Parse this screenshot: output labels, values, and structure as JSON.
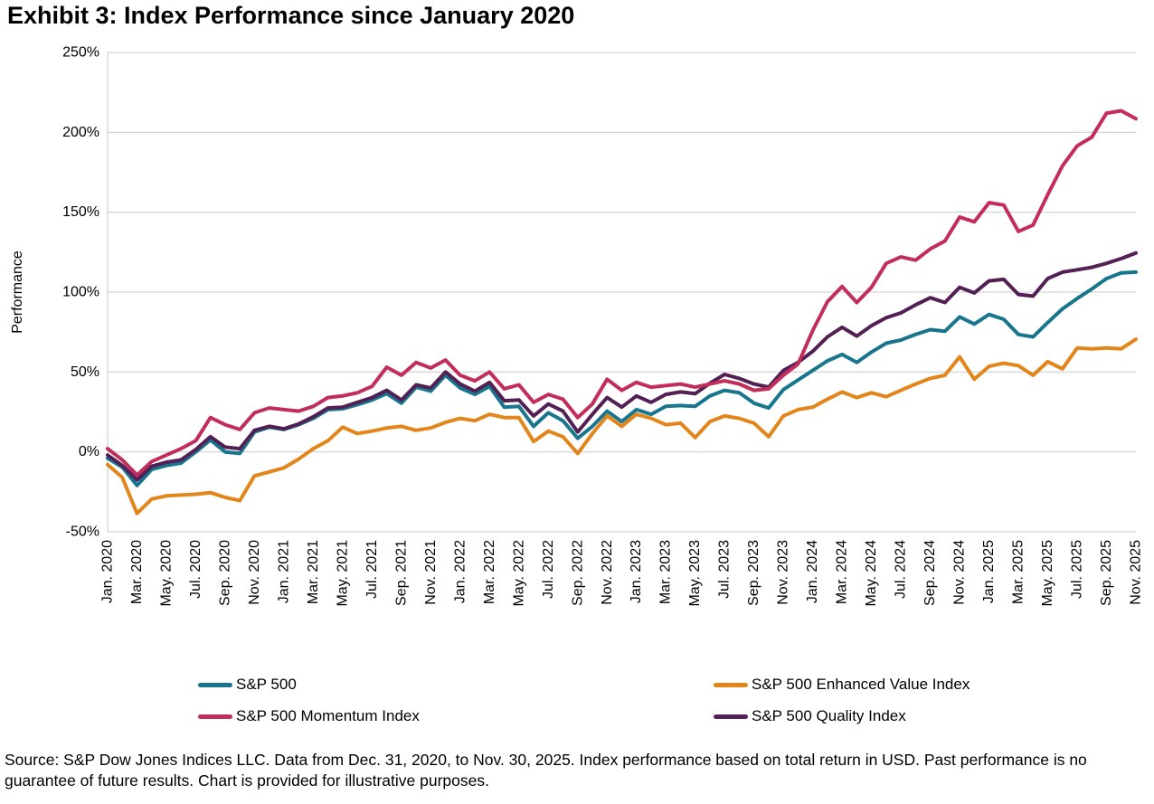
{
  "title": "Exhibit 3: Index Performance since January 2020",
  "source_note": "Source: S&P Dow Jones Indices LLC. Data from Dec. 31, 2020, to Nov. 30, 2025. Index performance based on total return in USD. Past performance is no guarantee of future results. Chart is provided for illustrative purposes.",
  "chart_data": {
    "type": "line",
    "title": "Exhibit 3: Index Performance since January 2020",
    "xlabel": "",
    "ylabel": "Performance",
    "ylim": [
      -50,
      250
    ],
    "ytick_step": 50,
    "ytick_suffix": "%",
    "grid": "horizontal",
    "gridline_color": "#C9C9C9",
    "x_tick_every": 2,
    "legend_position": "bottom",
    "z_order": [
      0,
      1,
      3,
      2
    ],
    "categories": [
      "Jan. 2020",
      "Feb. 2020",
      "Mar. 2020",
      "Apr. 2020",
      "May. 2020",
      "Jun. 2020",
      "Jul. 2020",
      "Aug. 2020",
      "Sep. 2020",
      "Oct. 2020",
      "Nov. 2020",
      "Dec. 2020",
      "Jan. 2021",
      "Feb. 2021",
      "Mar. 2021",
      "Apr. 2021",
      "May. 2021",
      "Jun. 2021",
      "Jul. 2021",
      "Aug. 2021",
      "Sep. 2021",
      "Oct. 2021",
      "Nov. 2021",
      "Dec. 2021",
      "Jan. 2022",
      "Feb. 2022",
      "Mar. 2022",
      "Apr. 2022",
      "May. 2022",
      "Jun. 2022",
      "Jul. 2022",
      "Aug. 2022",
      "Sep. 2022",
      "Oct. 2022",
      "Nov. 2022",
      "Dec. 2022",
      "Jan. 2023",
      "Feb. 2023",
      "Mar. 2023",
      "Apr. 2023",
      "May. 2023",
      "Jun. 2023",
      "Jul. 2023",
      "Aug. 2023",
      "Sep. 2023",
      "Oct. 2023",
      "Nov. 2023",
      "Dec. 2023",
      "Jan. 2024",
      "Feb. 2024",
      "Mar. 2024",
      "Apr. 2024",
      "May. 2024",
      "Jun. 2024",
      "Jul. 2024",
      "Aug. 2024",
      "Sep. 2024",
      "Oct. 2024",
      "Nov. 2024",
      "Dec. 2024",
      "Jan. 2025",
      "Feb. 2025",
      "Mar. 2025",
      "Apr. 2025",
      "May. 2025",
      "Jun. 2025",
      "Jul. 2025",
      "Aug. 2025",
      "Sep. 2025",
      "Oct. 2025",
      "Nov. 2025"
    ],
    "series": [
      {
        "name": "S&P 500",
        "color": "#17768D",
        "values": [
          -4,
          -9.5,
          -21,
          -11,
          -8.5,
          -7,
          0,
          7.5,
          0,
          -1,
          12.5,
          15.5,
          14,
          17,
          21,
          26.5,
          27,
          29.5,
          32.5,
          36.5,
          30.5,
          40.5,
          38,
          48,
          40,
          36,
          41,
          28,
          28.5,
          16,
          24.5,
          19.5,
          8.5,
          16,
          25.5,
          19,
          26.5,
          23.5,
          28.5,
          29,
          28.5,
          35,
          38.5,
          37,
          30.5,
          27.5,
          39,
          45,
          51,
          57,
          61,
          56,
          62.5,
          68,
          70,
          73.5,
          76.5,
          75.5,
          84.5,
          80,
          86,
          83,
          73.5,
          72,
          81,
          89.5,
          96,
          102,
          108.5,
          112,
          112.5
        ]
      },
      {
        "name": "S&P 500 Enhanced Value Index",
        "color": "#E2861B",
        "values": [
          -8,
          -16,
          -38.5,
          -29.5,
          -27.5,
          -27,
          -26.5,
          -25.5,
          -28.5,
          -30.5,
          -15,
          -12.5,
          -10,
          -4.5,
          2,
          7,
          15.5,
          11.5,
          13,
          15,
          16,
          13.5,
          15,
          18.5,
          21,
          19.5,
          23.5,
          21.5,
          21.5,
          6.5,
          13,
          9.5,
          -1,
          11.5,
          22.5,
          16,
          23.5,
          21,
          17,
          18,
          9,
          19,
          22.5,
          21,
          18,
          9.5,
          22.5,
          26.5,
          28,
          33,
          37.5,
          34,
          37,
          34.5,
          38.5,
          42.5,
          46,
          48,
          59.5,
          45.5,
          53.5,
          55.5,
          54,
          48,
          56.5,
          52,
          65,
          64.5,
          65,
          64.5,
          70.5
        ]
      },
      {
        "name": "S&P 500 Momentum Index",
        "color": "#C22D5B",
        "values": [
          2,
          -5,
          -14.5,
          -6,
          -2,
          2,
          7,
          21.5,
          17,
          14,
          24.5,
          27.5,
          26.5,
          25.5,
          28.5,
          34,
          35,
          37,
          41,
          53,
          48,
          56,
          52.5,
          57.5,
          48,
          44.5,
          50,
          39.5,
          42,
          31,
          36,
          33,
          21.5,
          30,
          45.5,
          38.5,
          43.5,
          40.5,
          41.5,
          42.5,
          40.5,
          42.5,
          44.5,
          42.5,
          38.5,
          39.5,
          48,
          55,
          76,
          94,
          103.5,
          93.5,
          103,
          118,
          122,
          120,
          127,
          132,
          147,
          144,
          156,
          154.5,
          138,
          142,
          161,
          179,
          191.5,
          197,
          212,
          213.5,
          208.5
        ]
      },
      {
        "name": "S&P 500 Quality Index",
        "color": "#522054",
        "values": [
          -2,
          -8.5,
          -17.5,
          -9,
          -6.5,
          -5,
          1.5,
          9.5,
          3,
          2,
          13.5,
          16,
          14.5,
          17.5,
          22,
          27.5,
          28,
          31,
          34,
          38.5,
          32.5,
          42,
          40,
          50,
          42.5,
          38,
          43.5,
          32,
          32.5,
          22.5,
          30,
          25.5,
          12.5,
          23.5,
          34,
          28,
          35,
          31,
          36,
          37.5,
          36.5,
          43,
          48.5,
          46,
          42.5,
          40.5,
          51,
          56,
          63,
          72,
          78,
          72.5,
          79,
          84,
          87,
          92,
          96.5,
          93.5,
          103,
          99.5,
          107,
          108,
          98.5,
          97.5,
          108.5,
          112.5,
          114,
          115.5,
          118,
          121,
          124.5
        ]
      }
    ]
  }
}
